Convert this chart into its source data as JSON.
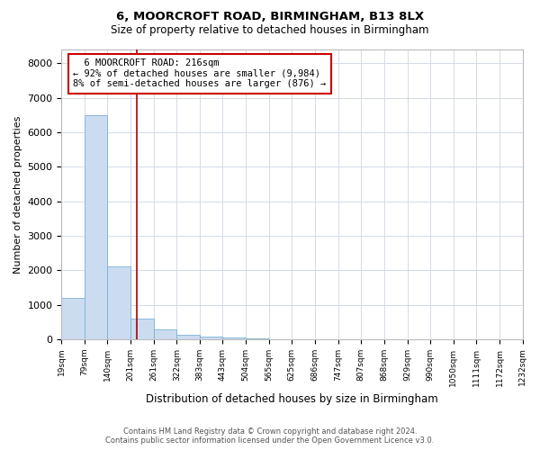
{
  "title1": "6, MOORCROFT ROAD, BIRMINGHAM, B13 8LX",
  "title2": "Size of property relative to detached houses in Birmingham",
  "xlabel": "Distribution of detached houses by size in Birmingham",
  "ylabel": "Number of detached properties",
  "footer1": "Contains HM Land Registry data © Crown copyright and database right 2024.",
  "footer2": "Contains public sector information licensed under the Open Government Licence v3.0.",
  "annotation_line1": "  6 MOORCROFT ROAD: 216sqm",
  "annotation_line2": "← 92% of detached houses are smaller (9,984)",
  "annotation_line3": "8% of semi-detached houses are larger (876) →",
  "property_size": 216,
  "bar_color": "#ccdcf0",
  "bar_edge_color": "#7bafd4",
  "vline_color": "#aa0000",
  "annotation_box_edge": "#cc0000",
  "background_color": "#ffffff",
  "grid_color": "#d4dce8",
  "bin_edges": [
    19,
    79,
    140,
    201,
    261,
    322,
    383,
    443,
    504,
    565,
    625,
    686,
    747,
    807,
    868,
    929,
    990,
    1050,
    1111,
    1172,
    1232
  ],
  "bin_labels": [
    "19sqm",
    "79sqm",
    "140sqm",
    "201sqm",
    "261sqm",
    "322sqm",
    "383sqm",
    "443sqm",
    "504sqm",
    "565sqm",
    "625sqm",
    "686sqm",
    "747sqm",
    "807sqm",
    "868sqm",
    "929sqm",
    "990sqm",
    "1050sqm",
    "1111sqm",
    "1172sqm",
    "1232sqm"
  ],
  "bar_heights": [
    1200,
    6500,
    2100,
    600,
    280,
    130,
    70,
    40,
    30,
    0,
    0,
    0,
    0,
    0,
    0,
    0,
    0,
    0,
    0,
    0
  ],
  "ylim": [
    0,
    8400
  ],
  "yticks": [
    0,
    1000,
    2000,
    3000,
    4000,
    5000,
    6000,
    7000,
    8000
  ]
}
